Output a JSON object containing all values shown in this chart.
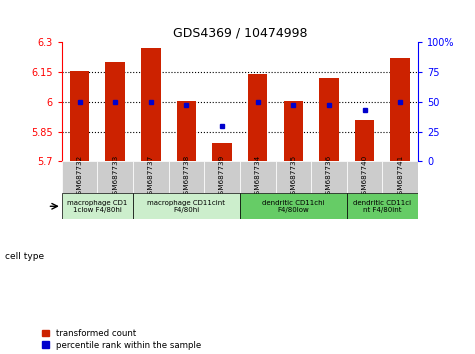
{
  "title": "GDS4369 / 10474998",
  "samples": [
    "GSM687732",
    "GSM687733",
    "GSM687737",
    "GSM687738",
    "GSM687739",
    "GSM687734",
    "GSM687735",
    "GSM687736",
    "GSM687740",
    "GSM687741"
  ],
  "transformed_counts": [
    6.155,
    6.2,
    6.27,
    6.005,
    5.795,
    6.14,
    6.005,
    6.12,
    5.91,
    6.22
  ],
  "percentile_ranks": [
    50,
    50,
    50,
    47,
    30,
    50,
    47,
    47,
    43,
    50
  ],
  "ylim_left": [
    5.7,
    6.3
  ],
  "ylim_right": [
    0,
    100
  ],
  "yticks_left": [
    5.7,
    5.85,
    6.0,
    6.15,
    6.3
  ],
  "yticks_right": [
    0,
    25,
    50,
    75,
    100
  ],
  "ytick_labels_left": [
    "5.7",
    "5.85",
    "6",
    "6.15",
    "6.3"
  ],
  "ytick_labels_right": [
    "0",
    "25",
    "50",
    "75",
    "100%"
  ],
  "hlines": [
    5.85,
    6.0,
    6.15
  ],
  "bar_color": "#cc2200",
  "dot_color": "#0000cc",
  "cell_type_groups": [
    {
      "label": "macrophage CD1\n1clow F4/80hi",
      "start": 0,
      "end": 2,
      "color": "#cceecc"
    },
    {
      "label": "macrophage CD11cint\nF4/80hi",
      "start": 2,
      "end": 5,
      "color": "#cceecc"
    },
    {
      "label": "dendritic CD11chi\nF4/80low",
      "start": 5,
      "end": 8,
      "color": "#66cc66"
    },
    {
      "label": "dendritic CD11ci\nnt F4/80int",
      "start": 8,
      "end": 10,
      "color": "#66cc66"
    }
  ],
  "legend_items": [
    {
      "label": "transformed count",
      "color": "#cc2200"
    },
    {
      "label": "percentile rank within the sample",
      "color": "#0000cc"
    }
  ],
  "cell_type_label": "cell type",
  "bar_width": 0.55,
  "sample_bg_color": "#cccccc"
}
